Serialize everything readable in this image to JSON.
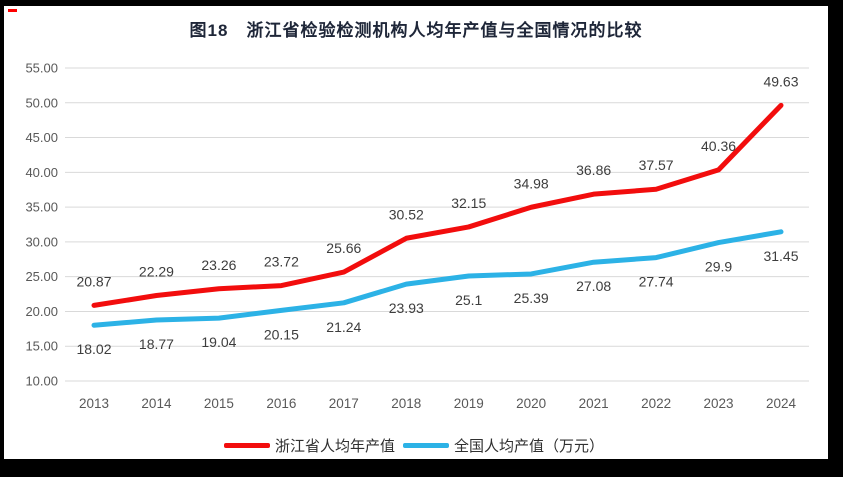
{
  "chart_data": {
    "type": "line",
    "title": "图18　浙江省检验检测机构人均年产值与全国情况的比较",
    "categories": [
      "2013",
      "2014",
      "2015",
      "2016",
      "2017",
      "2018",
      "2019",
      "2020",
      "2021",
      "2022",
      "2023",
      "2024"
    ],
    "series": [
      {
        "name": "浙江省人均年产值",
        "color": "#f20d0d",
        "label_position": "above",
        "values": [
          20.87,
          22.29,
          23.26,
          23.72,
          25.66,
          30.52,
          32.15,
          34.98,
          36.86,
          37.57,
          40.36,
          49.63
        ],
        "labels": [
          "20.87",
          "22.29",
          "23.26",
          "23.72",
          "25.66",
          "30.52",
          "32.15",
          "34.98",
          "36.86",
          "37.57",
          "40.36",
          "49.63"
        ]
      },
      {
        "name": "全国人均产值（万元）",
        "color": "#2cb2e6",
        "label_position": "below",
        "values": [
          18.02,
          18.77,
          19.04,
          20.15,
          21.24,
          23.93,
          25.1,
          25.39,
          27.08,
          27.74,
          29.9,
          31.45
        ],
        "labels": [
          "18.02",
          "18.77",
          "19.04",
          "20.15",
          "21.24",
          "23.93",
          "25.1",
          "25.39",
          "27.08",
          "27.74",
          "29.9",
          "31.45"
        ]
      }
    ],
    "ylim": [
      10,
      55
    ],
    "yticks": [
      "55.00",
      "50.00",
      "45.00",
      "40.00",
      "35.00",
      "30.00",
      "25.00",
      "20.00",
      "15.00",
      "10.00"
    ],
    "xlabel": "",
    "ylabel": "",
    "grid": true,
    "legend_position": "bottom",
    "background": "#ffffff",
    "frame_color": "#000000",
    "accent_mark_color": "#fe0000",
    "grid_color": "#d9d9d9",
    "axis_label_color": "#595959",
    "data_label_color": "#3d3d3d",
    "title_color": "#1e2638"
  }
}
